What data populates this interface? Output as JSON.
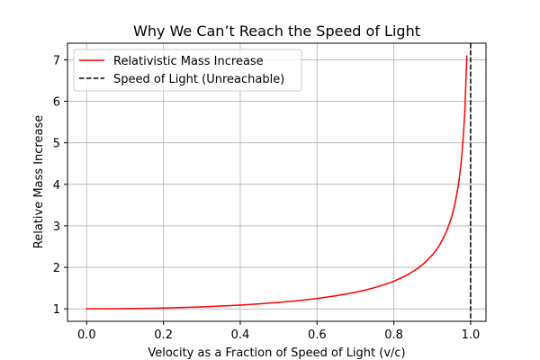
{
  "chart_data": {
    "type": "line",
    "title": "Why We Can’t Reach the Speed of Light",
    "xlabel": "Velocity as a Fraction of Speed of Light (v/c)",
    "ylabel": "Relative Mass Increase",
    "xlim": [
      -0.05,
      1.04
    ],
    "ylim": [
      0.7,
      7.4
    ],
    "xticks": [
      0.0,
      0.2,
      0.4,
      0.6,
      0.8,
      1.0
    ],
    "xtick_labels": [
      "0.0",
      "0.2",
      "0.4",
      "0.6",
      "0.8",
      "1.0"
    ],
    "yticks": [
      1,
      2,
      3,
      4,
      5,
      6,
      7
    ],
    "ytick_labels": [
      "1",
      "2",
      "3",
      "4",
      "5",
      "6",
      "7"
    ],
    "grid": true,
    "legend_position": "top-left",
    "series": [
      {
        "name": "Relativistic Mass Increase",
        "color": "#ff0000",
        "style": "solid",
        "x": [
          0.0,
          0.05,
          0.1,
          0.15,
          0.2,
          0.25,
          0.3,
          0.35,
          0.4,
          0.45,
          0.5,
          0.55,
          0.6,
          0.65,
          0.7,
          0.72,
          0.74,
          0.76,
          0.78,
          0.8,
          0.82,
          0.84,
          0.86,
          0.88,
          0.9,
          0.91,
          0.92,
          0.93,
          0.94,
          0.95,
          0.955,
          0.96,
          0.965,
          0.97,
          0.975,
          0.98,
          0.985,
          0.99
        ],
        "y": [
          1.0,
          1.001,
          1.005,
          1.011,
          1.021,
          1.033,
          1.048,
          1.068,
          1.091,
          1.12,
          1.155,
          1.197,
          1.25,
          1.316,
          1.4,
          1.44,
          1.487,
          1.539,
          1.598,
          1.667,
          1.747,
          1.843,
          1.96,
          2.105,
          2.294,
          2.412,
          2.552,
          2.721,
          2.931,
          3.203,
          3.37,
          3.571,
          3.82,
          4.113,
          4.5,
          5.025,
          5.767,
          7.089
        ]
      },
      {
        "name": "Speed of Light (Unreachable)",
        "color": "#000000",
        "style": "dashed",
        "x_value": 1.0
      }
    ]
  }
}
